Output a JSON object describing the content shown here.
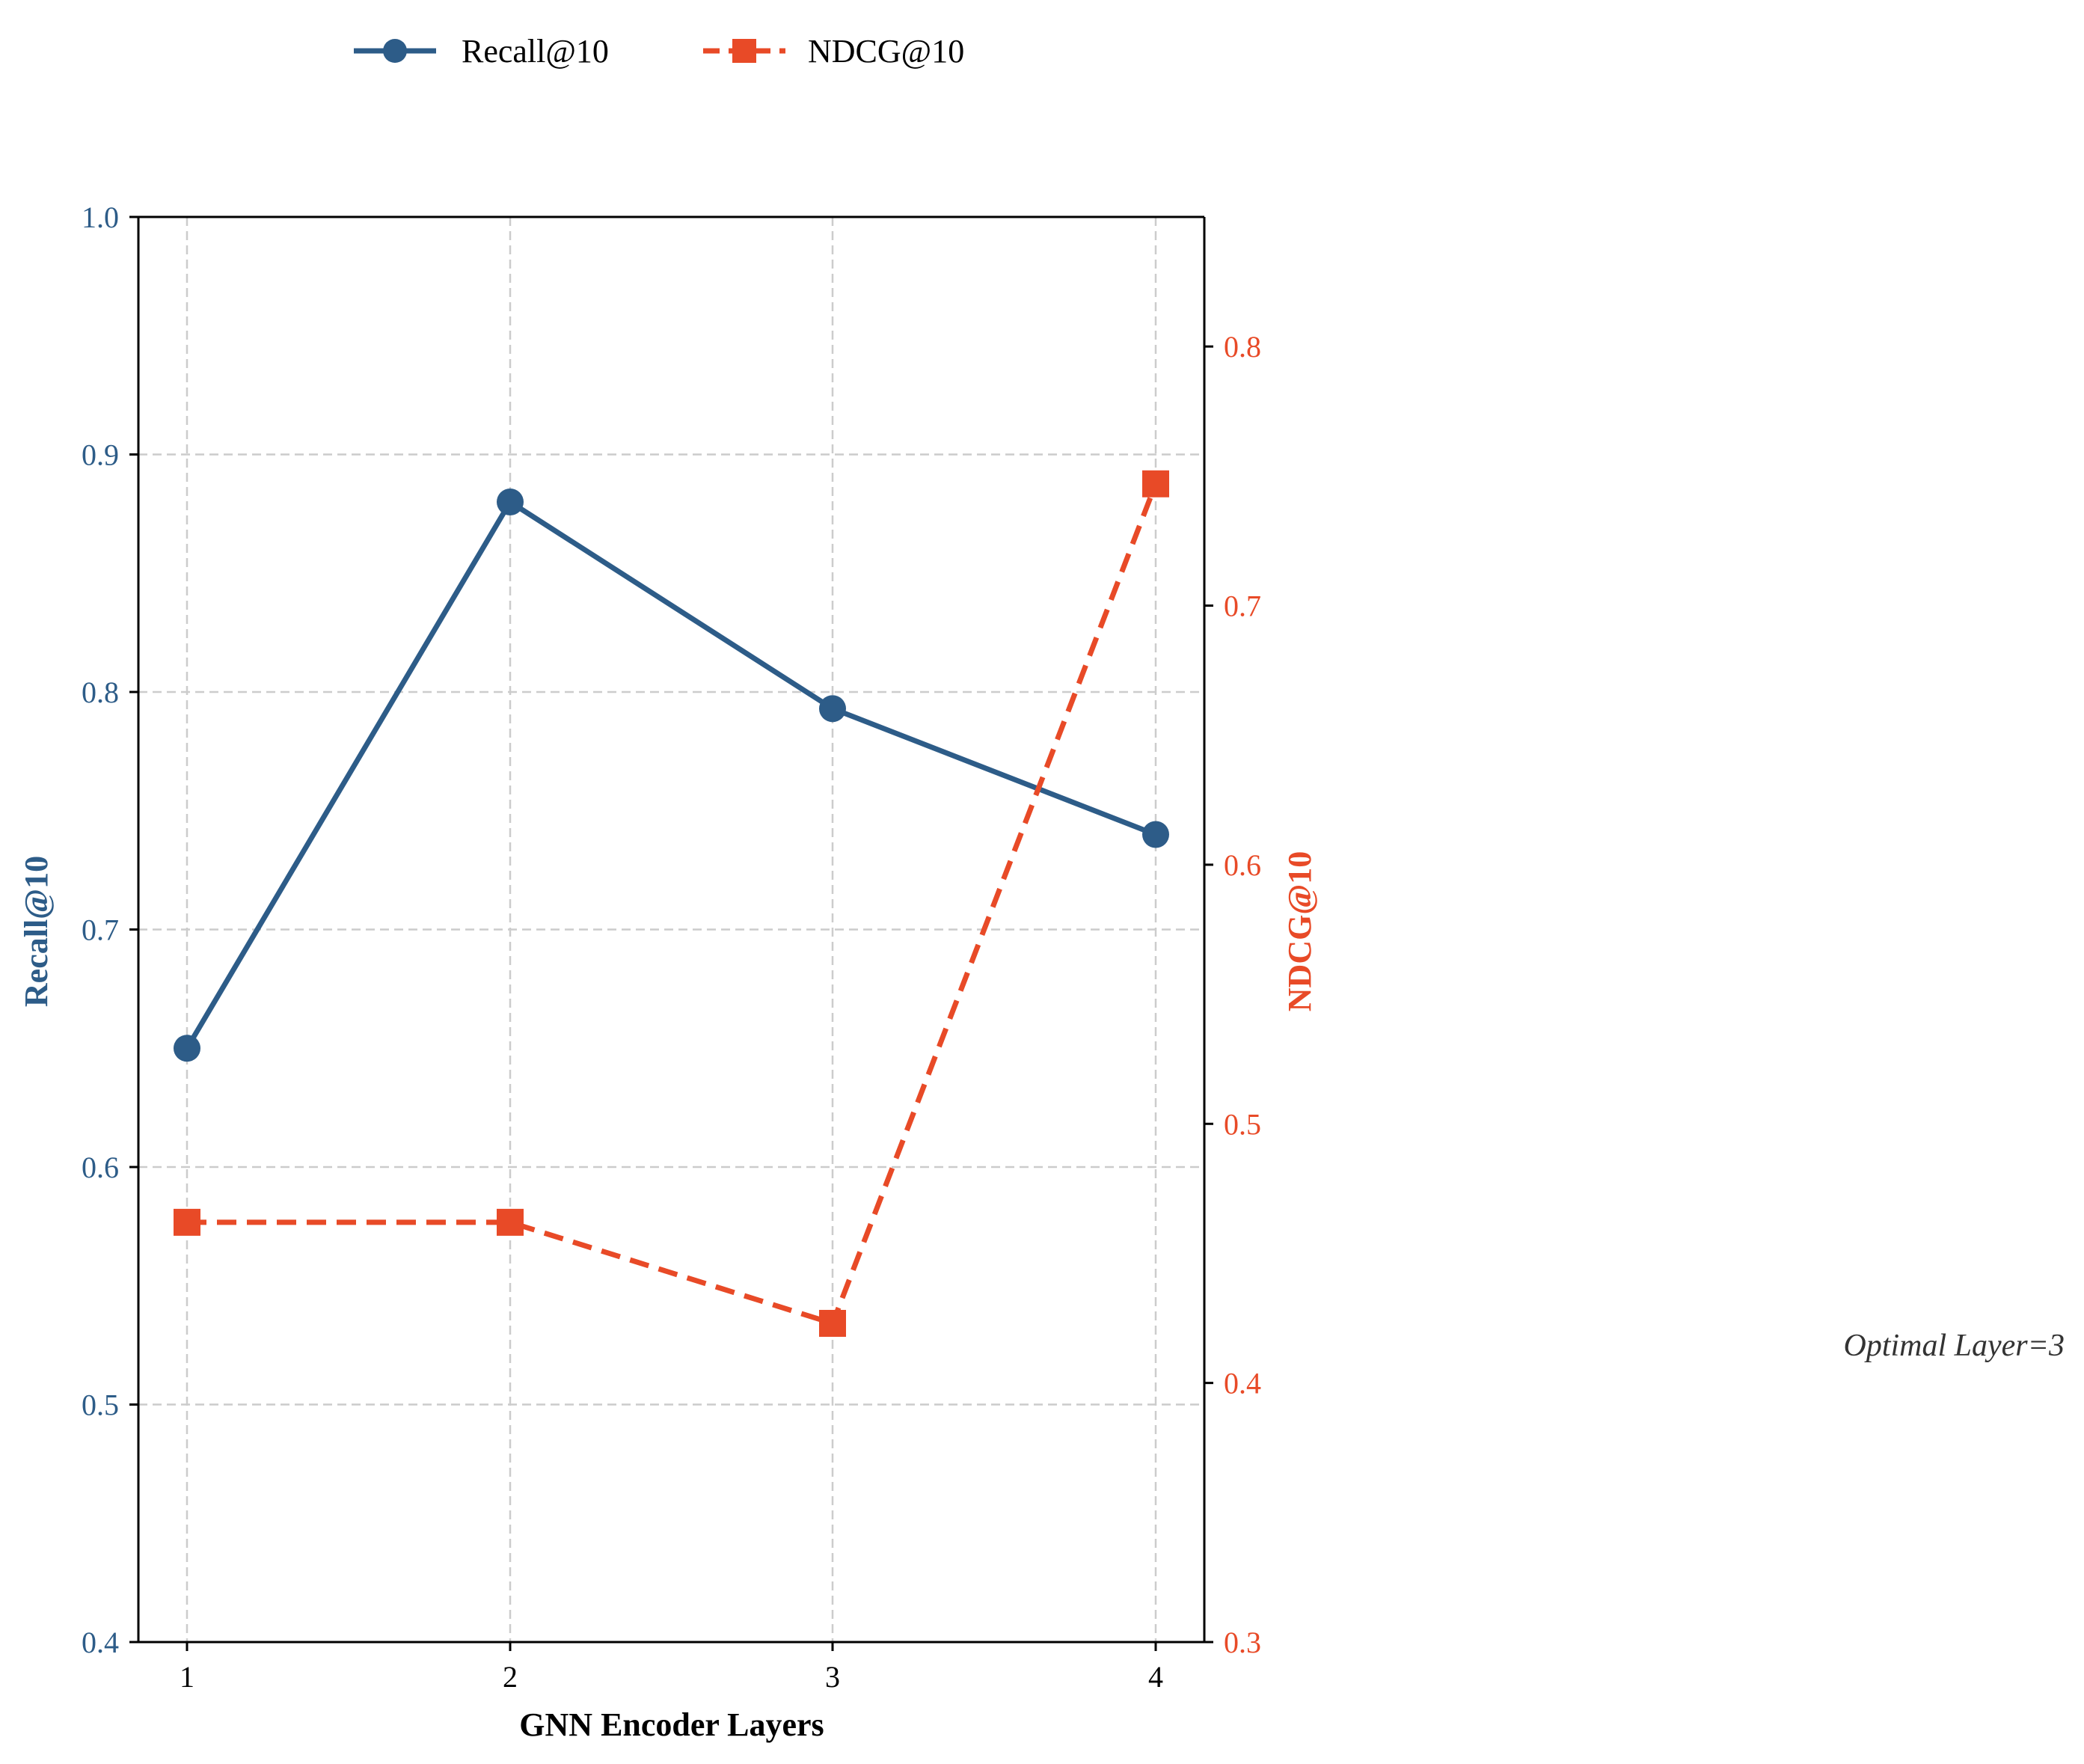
{
  "chart_data": {
    "type": "line",
    "x": [
      1,
      2,
      3,
      4
    ],
    "xlabel": "GNN Encoder Layers",
    "xticks": [
      "1",
      "2",
      "3",
      "4"
    ],
    "series": [
      {
        "name": "Recall@10",
        "axis": "left",
        "values": [
          0.65,
          0.88,
          0.793,
          0.74
        ],
        "color": "#2d5c88",
        "marker": "circle",
        "linestyle": "solid"
      },
      {
        "name": "NDCG@10",
        "axis": "right",
        "values": [
          0.462,
          0.462,
          0.423,
          0.747
        ],
        "color": "#e84a27",
        "marker": "square",
        "linestyle": "dashed"
      }
    ],
    "ylabel_left": "Recall@10",
    "ylim_left": [
      0.4,
      1.0
    ],
    "yticks_left": [
      "0.4",
      "0.5",
      "0.6",
      "0.7",
      "0.8",
      "0.9",
      "1.0"
    ],
    "ylabel_right": "NDCG@10",
    "ylim_right": [
      0.3,
      0.85
    ],
    "yticks_right": [
      "0.3",
      "0.4",
      "0.5",
      "0.6",
      "0.7",
      "0.8"
    ],
    "grid": true,
    "legend_position": "top-left",
    "annotation": "Optimal Layer=3"
  }
}
